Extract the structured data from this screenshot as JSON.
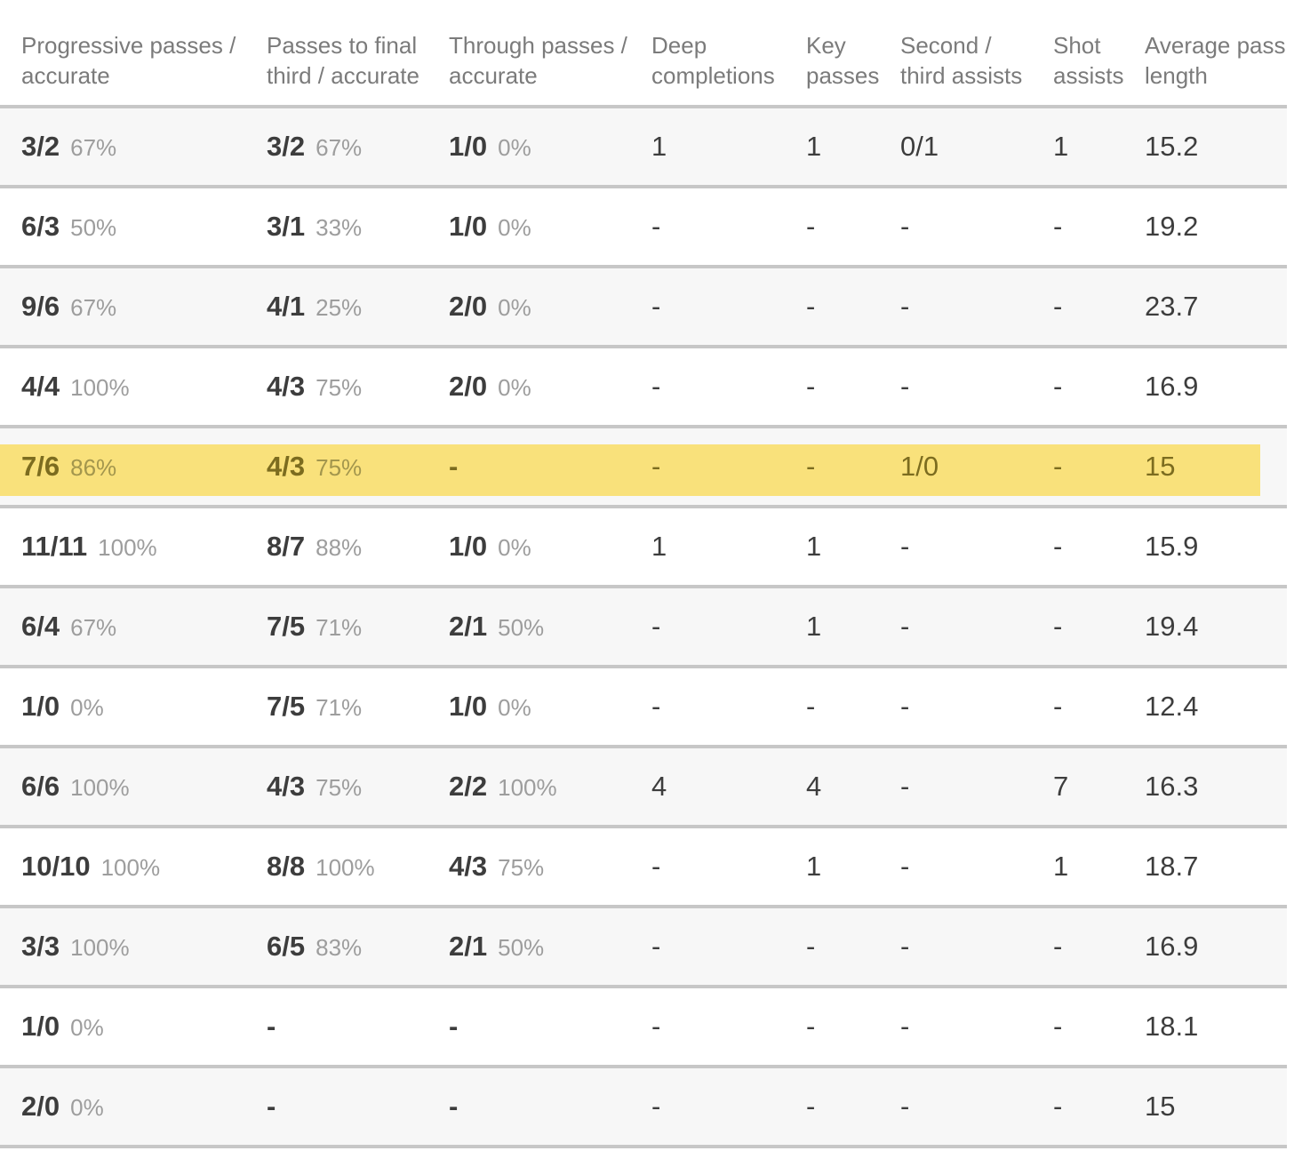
{
  "table": {
    "columns": [
      {
        "label": "Progressive passes / accurate"
      },
      {
        "label": "Passes to final third / accurate"
      },
      {
        "label": "Through passes / accurate"
      },
      {
        "label": "Deep completions"
      },
      {
        "label": "Key passes"
      },
      {
        "label": "Second / third assists"
      },
      {
        "label": "Shot assists"
      },
      {
        "label": "Average pass length"
      }
    ],
    "rows": [
      {
        "highlight": false,
        "cells": [
          {
            "v": "3/2",
            "pct": "67%"
          },
          {
            "v": "3/2",
            "pct": "67%"
          },
          {
            "v": "1/0",
            "pct": "0%"
          },
          {
            "v": "1"
          },
          {
            "v": "1"
          },
          {
            "v": "0/1"
          },
          {
            "v": "1"
          },
          {
            "v": "15.2"
          }
        ]
      },
      {
        "highlight": false,
        "cells": [
          {
            "v": "6/3",
            "pct": "50%"
          },
          {
            "v": "3/1",
            "pct": "33%"
          },
          {
            "v": "1/0",
            "pct": "0%"
          },
          {
            "v": "-"
          },
          {
            "v": "-"
          },
          {
            "v": "-"
          },
          {
            "v": "-"
          },
          {
            "v": "19.2"
          }
        ]
      },
      {
        "highlight": false,
        "cells": [
          {
            "v": "9/6",
            "pct": "67%"
          },
          {
            "v": "4/1",
            "pct": "25%"
          },
          {
            "v": "2/0",
            "pct": "0%"
          },
          {
            "v": "-"
          },
          {
            "v": "-"
          },
          {
            "v": "-"
          },
          {
            "v": "-"
          },
          {
            "v": "23.7"
          }
        ]
      },
      {
        "highlight": false,
        "cells": [
          {
            "v": "4/4",
            "pct": "100%"
          },
          {
            "v": "4/3",
            "pct": "75%"
          },
          {
            "v": "2/0",
            "pct": "0%"
          },
          {
            "v": "-"
          },
          {
            "v": "-"
          },
          {
            "v": "-"
          },
          {
            "v": "-"
          },
          {
            "v": "16.9"
          }
        ]
      },
      {
        "highlight": true,
        "cells": [
          {
            "v": "7/6",
            "pct": "86%"
          },
          {
            "v": "4/3",
            "pct": "75%"
          },
          {
            "v": "-"
          },
          {
            "v": "-"
          },
          {
            "v": "-"
          },
          {
            "v": "1/0"
          },
          {
            "v": "-"
          },
          {
            "v": "15"
          }
        ]
      },
      {
        "highlight": false,
        "cells": [
          {
            "v": "11/11",
            "pct": "100%"
          },
          {
            "v": "8/7",
            "pct": "88%"
          },
          {
            "v": "1/0",
            "pct": "0%"
          },
          {
            "v": "1"
          },
          {
            "v": "1"
          },
          {
            "v": "-"
          },
          {
            "v": "-"
          },
          {
            "v": "15.9"
          }
        ]
      },
      {
        "highlight": false,
        "cells": [
          {
            "v": "6/4",
            "pct": "67%"
          },
          {
            "v": "7/5",
            "pct": "71%"
          },
          {
            "v": "2/1",
            "pct": "50%"
          },
          {
            "v": "-"
          },
          {
            "v": "1"
          },
          {
            "v": "-"
          },
          {
            "v": "-"
          },
          {
            "v": "19.4"
          }
        ]
      },
      {
        "highlight": false,
        "cells": [
          {
            "v": "1/0",
            "pct": "0%"
          },
          {
            "v": "7/5",
            "pct": "71%"
          },
          {
            "v": "1/0",
            "pct": "0%"
          },
          {
            "v": "-"
          },
          {
            "v": "-"
          },
          {
            "v": "-"
          },
          {
            "v": "-"
          },
          {
            "v": "12.4"
          }
        ]
      },
      {
        "highlight": false,
        "cells": [
          {
            "v": "6/6",
            "pct": "100%"
          },
          {
            "v": "4/3",
            "pct": "75%"
          },
          {
            "v": "2/2",
            "pct": "100%"
          },
          {
            "v": "4"
          },
          {
            "v": "4"
          },
          {
            "v": "-"
          },
          {
            "v": "7"
          },
          {
            "v": "16.3"
          }
        ]
      },
      {
        "highlight": false,
        "cells": [
          {
            "v": "10/10",
            "pct": "100%"
          },
          {
            "v": "8/8",
            "pct": "100%"
          },
          {
            "v": "4/3",
            "pct": "75%"
          },
          {
            "v": "-"
          },
          {
            "v": "1"
          },
          {
            "v": "-"
          },
          {
            "v": "1"
          },
          {
            "v": "18.7"
          }
        ]
      },
      {
        "highlight": false,
        "cells": [
          {
            "v": "3/3",
            "pct": "100%"
          },
          {
            "v": "6/5",
            "pct": "83%"
          },
          {
            "v": "2/1",
            "pct": "50%"
          },
          {
            "v": "-"
          },
          {
            "v": "-"
          },
          {
            "v": "-"
          },
          {
            "v": "-"
          },
          {
            "v": "16.9"
          }
        ]
      },
      {
        "highlight": false,
        "cells": [
          {
            "v": "1/0",
            "pct": "0%"
          },
          {
            "v": "-"
          },
          {
            "v": "-"
          },
          {
            "v": "-"
          },
          {
            "v": "-"
          },
          {
            "v": "-"
          },
          {
            "v": "-"
          },
          {
            "v": "18.1"
          }
        ]
      },
      {
        "highlight": false,
        "cells": [
          {
            "v": "2/0",
            "pct": "0%"
          },
          {
            "v": "-"
          },
          {
            "v": "-"
          },
          {
            "v": "-"
          },
          {
            "v": "-"
          },
          {
            "v": "-"
          },
          {
            "v": "-"
          },
          {
            "v": "15"
          }
        ]
      }
    ]
  },
  "colors": {
    "separator": "#c7c7c7",
    "shade_row_bg": "#f7f7f7",
    "highlight_bg": "#f9e17b",
    "value_text": "#3d3d3d",
    "percent_text": "#9d9d9d",
    "header_text": "#7b7b7b",
    "highlight_value_text": "#7c6c1f",
    "highlight_percent_text": "#a3964d"
  }
}
